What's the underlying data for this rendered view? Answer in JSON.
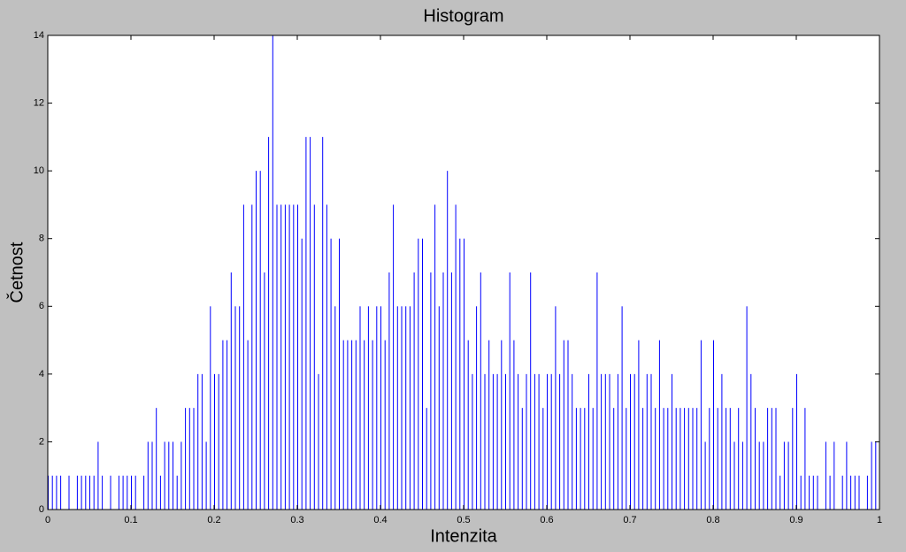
{
  "chart_data": {
    "type": "histogram",
    "title": "Histogram",
    "x_label": "Intenzita",
    "y_label": "Četnost",
    "color": "#0000ff",
    "bins": [
      0,
      0.005,
      0.01,
      0.015,
      0.02,
      0.025,
      0.03,
      0.035,
      0.04,
      0.045,
      0.05,
      0.055,
      0.06,
      0.065,
      0.07,
      0.075,
      0.08,
      0.085,
      0.09,
      0.095,
      0.1,
      0.105,
      0.11,
      0.115,
      0.12,
      0.125,
      0.13,
      0.135,
      0.14,
      0.145,
      0.15,
      0.155,
      0.16,
      0.165,
      0.17,
      0.175,
      0.18,
      0.185,
      0.19,
      0.195,
      0.2,
      0.205,
      0.21,
      0.215,
      0.22,
      0.225,
      0.23,
      0.235,
      0.24,
      0.245,
      0.25,
      0.255,
      0.26,
      0.265,
      0.27,
      0.275,
      0.28,
      0.285,
      0.29,
      0.295,
      0.3,
      0.305,
      0.31,
      0.315,
      0.32,
      0.325,
      0.33,
      0.335,
      0.34,
      0.345,
      0.35,
      0.355,
      0.36,
      0.365,
      0.37,
      0.375,
      0.38,
      0.385,
      0.39,
      0.395,
      0.4,
      0.405,
      0.41,
      0.415,
      0.42,
      0.425,
      0.43,
      0.435,
      0.44,
      0.445,
      0.45,
      0.455,
      0.46,
      0.465,
      0.47,
      0.475,
      0.48,
      0.485,
      0.49,
      0.495,
      0.5,
      0.505,
      0.51,
      0.515,
      0.52,
      0.525,
      0.53,
      0.535,
      0.54,
      0.545,
      0.55,
      0.555,
      0.56,
      0.565,
      0.57,
      0.575,
      0.58,
      0.585,
      0.59,
      0.595,
      0.6,
      0.605,
      0.61,
      0.615,
      0.62,
      0.625,
      0.63,
      0.635,
      0.64,
      0.645,
      0.65,
      0.655,
      0.66,
      0.665,
      0.67,
      0.675,
      0.68,
      0.685,
      0.69,
      0.695,
      0.7,
      0.705,
      0.71,
      0.715,
      0.72,
      0.725,
      0.73,
      0.735,
      0.74,
      0.745,
      0.75,
      0.755,
      0.76,
      0.765,
      0.77,
      0.775,
      0.78,
      0.785,
      0.79,
      0.795,
      0.8,
      0.805,
      0.81,
      0.815,
      0.82,
      0.825,
      0.83,
      0.835,
      0.84,
      0.845,
      0.85,
      0.855,
      0.86,
      0.865,
      0.87,
      0.875,
      0.88,
      0.885,
      0.89,
      0.895,
      0.9,
      0.905,
      0.91,
      0.915,
      0.92,
      0.925,
      0.93,
      0.935,
      0.94,
      0.945,
      0.95,
      0.955,
      0.96,
      0.965,
      0.97,
      0.975,
      0.98,
      0.985,
      0.99,
      0.995,
      1
    ],
    "counts": [
      1,
      1,
      1,
      1,
      0,
      1,
      0,
      1,
      1,
      1,
      1,
      1,
      2,
      1,
      0,
      1,
      0,
      1,
      1,
      1,
      1,
      1,
      0,
      1,
      2,
      2,
      3,
      1,
      2,
      2,
      2,
      1,
      2,
      3,
      3,
      3,
      4,
      4,
      2,
      6,
      4,
      4,
      5,
      5,
      7,
      6,
      6,
      9,
      5,
      9,
      10,
      10,
      7,
      11,
      14,
      9,
      9,
      9,
      9,
      9,
      9,
      8,
      11,
      11,
      9,
      4,
      11,
      9,
      8,
      6,
      8,
      5,
      5,
      5,
      5,
      6,
      5,
      6,
      5,
      6,
      6,
      5,
      7,
      9,
      6,
      6,
      6,
      6,
      7,
      8,
      8,
      3,
      7,
      9,
      6,
      7,
      10,
      7,
      9,
      8,
      8,
      5,
      4,
      6,
      7,
      4,
      5,
      4,
      4,
      5,
      4,
      7,
      5,
      4,
      3,
      4,
      7,
      4,
      4,
      3,
      4,
      4,
      6,
      4,
      5,
      5,
      4,
      3,
      3,
      3,
      4,
      3,
      7,
      4,
      4,
      4,
      3,
      4,
      6,
      3,
      4,
      4,
      5,
      3,
      4,
      4,
      3,
      5,
      3,
      3,
      4,
      3,
      3,
      3,
      3,
      3,
      3,
      5,
      2,
      3,
      5,
      3,
      4,
      3,
      3,
      2,
      3,
      2,
      6,
      4,
      3,
      2,
      2,
      3,
      3,
      3,
      1,
      2,
      2,
      3,
      4,
      1,
      3,
      1,
      1,
      1,
      0,
      2,
      1,
      2,
      0,
      1,
      2,
      1,
      1,
      1,
      0,
      1,
      2,
      2
    ],
    "xlim": [
      0,
      1
    ],
    "xticks": [
      0,
      0.1,
      0.2,
      0.3,
      0.4,
      0.5,
      0.6,
      0.7,
      0.8,
      0.9,
      1
    ],
    "ylim": [
      0,
      14
    ],
    "yticks": [
      0,
      2,
      4,
      6,
      8,
      10,
      12,
      14
    ]
  }
}
